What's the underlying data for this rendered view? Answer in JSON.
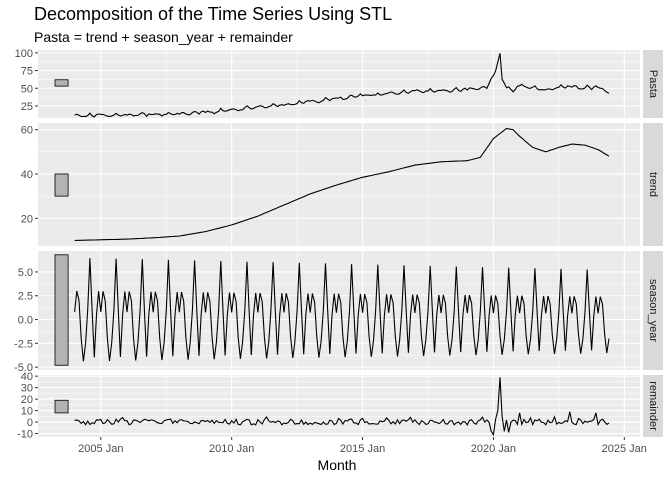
{
  "title": "Decomposition of the Time Series Using STL",
  "subtitle": "Pasta = trend + season_year + remainder",
  "colors": {
    "panel_bg": "#ebebeb",
    "grid": "#ffffff",
    "strip_bg": "#d9d9d9",
    "line": "#000000",
    "scale_bar_fill": "#b3b3b3"
  },
  "chart_data": {
    "type": "line",
    "title": "Decomposition of the Time Series Using STL",
    "subtitle": "Pasta = trend + season_year + remainder",
    "xlabel": "Month",
    "x_range": [
      2002.6,
      2025.6
    ],
    "x_start": "2004 Jan",
    "x_end": "2024 Jun",
    "x_frequency": "monthly",
    "x_ticks": [
      {
        "value": 2005,
        "label": "2005 Jan"
      },
      {
        "value": 2010,
        "label": "2010 Jan"
      },
      {
        "value": 2015,
        "label": "2015 Jan"
      },
      {
        "value": 2020,
        "label": "2020 Jan"
      },
      {
        "value": 2025,
        "label": "2025 Jan"
      }
    ],
    "grid": true,
    "panels": [
      {
        "name": "Pasta",
        "ylim": [
          8,
          104
        ],
        "y_ticks": [
          25,
          50,
          75,
          100
        ],
        "y_tick_labels": [
          "25",
          "50",
          "75",
          "100"
        ],
        "scale_bar": [
          53,
          62
        ],
        "anchors": [
          [
            2004.0,
            11
          ],
          [
            2005.0,
            12
          ],
          [
            2006.0,
            12.5
          ],
          [
            2007.0,
            13
          ],
          [
            2008.0,
            14
          ],
          [
            2009.0,
            16
          ],
          [
            2010.0,
            19
          ],
          [
            2011.0,
            23
          ],
          [
            2012.0,
            26
          ],
          [
            2013.0,
            31
          ],
          [
            2014.0,
            35
          ],
          [
            2015.0,
            40
          ],
          [
            2016.0,
            42
          ],
          [
            2017.0,
            46
          ],
          [
            2018.0,
            47
          ],
          [
            2019.0,
            48
          ],
          [
            2019.75,
            51
          ],
          [
            2020.1,
            75
          ],
          [
            2020.25,
            101
          ],
          [
            2020.33,
            66
          ],
          [
            2020.5,
            50
          ],
          [
            2020.75,
            46
          ],
          [
            2021.0,
            54
          ],
          [
            2021.5,
            50
          ],
          [
            2022.0,
            47
          ],
          [
            2022.5,
            52
          ],
          [
            2023.0,
            52
          ],
          [
            2023.5,
            51
          ],
          [
            2024.0,
            51
          ],
          [
            2024.42,
            44
          ]
        ],
        "seasonal_amplitude": 3.5
      },
      {
        "name": "trend",
        "ylim": [
          7.5,
          63
        ],
        "y_ticks": [
          20,
          40,
          60
        ],
        "y_tick_labels": [
          "20",
          "40",
          "60"
        ],
        "scale_bar": [
          30,
          40
        ],
        "anchors": [
          [
            2004.0,
            10
          ],
          [
            2005.0,
            10.3
          ],
          [
            2006.0,
            10.6
          ],
          [
            2007.0,
            11.2
          ],
          [
            2008.0,
            12
          ],
          [
            2009.0,
            14
          ],
          [
            2010.0,
            17
          ],
          [
            2011.0,
            21
          ],
          [
            2012.0,
            26
          ],
          [
            2013.0,
            31
          ],
          [
            2014.0,
            35
          ],
          [
            2015.0,
            38.5
          ],
          [
            2016.0,
            41
          ],
          [
            2017.0,
            44
          ],
          [
            2018.0,
            45.5
          ],
          [
            2019.0,
            46
          ],
          [
            2019.5,
            47.5
          ],
          [
            2020.0,
            56
          ],
          [
            2020.5,
            60.5
          ],
          [
            2020.75,
            60
          ],
          [
            2021.0,
            57
          ],
          [
            2021.5,
            52
          ],
          [
            2022.0,
            50
          ],
          [
            2022.5,
            52
          ],
          [
            2023.0,
            53.5
          ],
          [
            2023.5,
            53
          ],
          [
            2024.0,
            51
          ],
          [
            2024.42,
            48
          ]
        ],
        "seasonal_amplitude": 0
      },
      {
        "name": "season_year",
        "ylim": [
          -5.3,
          7.2
        ],
        "y_ticks": [
          -5.0,
          -2.5,
          0.0,
          2.5,
          5.0
        ],
        "y_tick_labels": [
          "-5.0",
          "-2.5",
          "0.0",
          "2.5",
          "5.0"
        ],
        "scale_bar": [
          -4.8,
          6.8
        ],
        "monthly_pattern": [
          0.8,
          3.0,
          2.0,
          -2.0,
          -4.4,
          -2.5,
          1.0,
          6.5,
          1.0,
          -4.0,
          0.5,
          3.0
        ],
        "amplitude_growth": 0.2
      },
      {
        "name": "remainder",
        "ylim": [
          -13,
          41
        ],
        "y_ticks": [
          -10,
          0,
          10,
          20,
          30,
          40
        ],
        "y_tick_labels": [
          "-10",
          "0",
          "10",
          "20",
          "30",
          "40"
        ],
        "scale_bar": [
          8,
          19
        ],
        "spikes": [
          [
            2019.92,
            -8
          ],
          [
            2020.0,
            -11
          ],
          [
            2020.17,
            10
          ],
          [
            2020.25,
            39
          ],
          [
            2020.33,
            5
          ],
          [
            2020.42,
            -8
          ],
          [
            2020.58,
            -9
          ],
          [
            2021.0,
            8
          ],
          [
            2022.92,
            9
          ],
          [
            2023.92,
            8
          ],
          [
            2024.33,
            -2
          ]
        ],
        "noise_amplitude": 2.5
      }
    ]
  }
}
